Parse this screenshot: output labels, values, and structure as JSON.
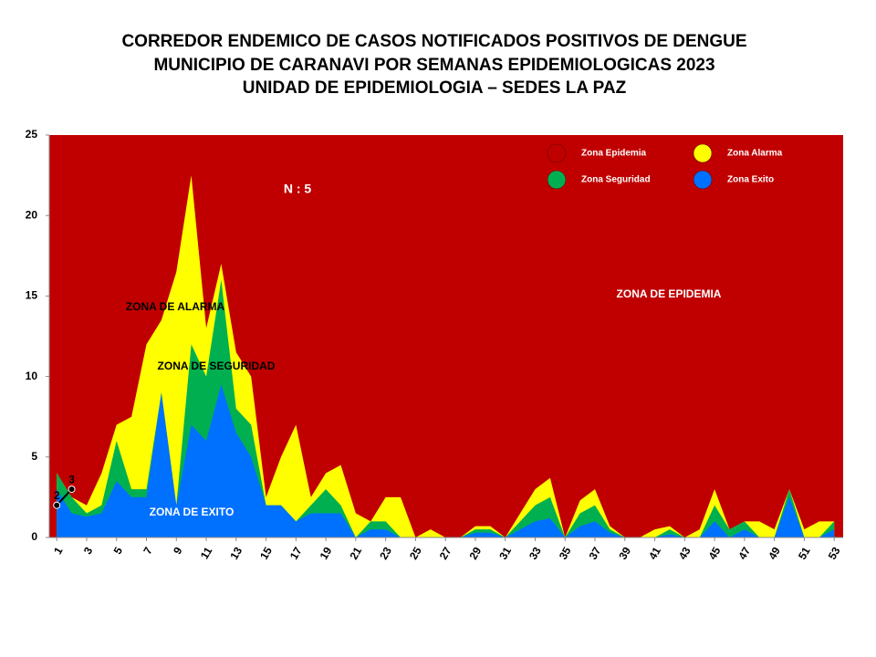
{
  "chart_data": {
    "type": "area",
    "title": [
      "CORREDOR ENDEMICO DE CASOS NOTIFICADOS POSITIVOS DE DENGUE",
      "MUNICIPIO DE CARANAVI POR SEMANAS EPIDEMIOLOGICAS 2023",
      "UNIDAD DE EPIDEMIOLOGIA – SEDES LA PAZ"
    ],
    "annotations": [
      "N : 5",
      "ZONA DE ALARMA",
      "ZONA DE  SEGURIDAD",
      "ZONA DE  EXITO",
      "ZONA DE EPIDEMIA"
    ],
    "x": [
      1,
      2,
      3,
      4,
      5,
      6,
      7,
      8,
      9,
      10,
      11,
      12,
      13,
      14,
      15,
      16,
      17,
      18,
      19,
      20,
      21,
      22,
      23,
      24,
      25,
      26,
      27,
      28,
      29,
      30,
      31,
      32,
      33,
      34,
      35,
      36,
      37,
      38,
      39,
      40,
      41,
      42,
      43,
      44,
      45,
      46,
      47,
      48,
      49,
      50,
      51,
      52,
      53
    ],
    "xlim": [
      0.5,
      53.6
    ],
    "xticks": [
      1,
      3,
      5,
      7,
      9,
      11,
      13,
      15,
      17,
      19,
      21,
      23,
      25,
      27,
      29,
      31,
      33,
      35,
      37,
      39,
      41,
      43,
      45,
      47,
      49,
      51,
      53
    ],
    "ylim": [
      0,
      25
    ],
    "yticks": [
      0,
      5,
      10,
      15,
      20,
      25
    ],
    "series": [
      {
        "name": "Zona Epidemia",
        "color": "#c00000"
      },
      {
        "name": "Zona Alarma",
        "color": "#ffff00",
        "values": [
          4,
          2.5,
          2,
          4,
          7,
          7.5,
          12,
          13.5,
          16.5,
          22.5,
          13,
          17,
          11.5,
          10,
          2.5,
          5,
          7,
          2.5,
          4,
          4.5,
          1.5,
          1,
          2.5,
          2.5,
          0,
          0.5,
          0,
          0,
          0.7,
          0.7,
          0,
          1.5,
          3,
          3.7,
          0,
          2.3,
          3,
          0.7,
          0,
          0,
          0.5,
          0.7,
          0,
          0.5,
          3,
          0.5,
          1,
          1,
          0.5,
          3,
          0.5,
          1,
          1
        ]
      },
      {
        "name": "Zona Seguridad",
        "color": "#00b050",
        "values": [
          4,
          2.5,
          1.5,
          2,
          6,
          3,
          3,
          9,
          2,
          12,
          10,
          16,
          8,
          7,
          2,
          2,
          1,
          2,
          3,
          2,
          0,
          1,
          1,
          0,
          0,
          0,
          0,
          0,
          0.5,
          0.5,
          0,
          1,
          2,
          2.5,
          0,
          1.5,
          2,
          0.5,
          0,
          0,
          0,
          0.5,
          0,
          0,
          2,
          0.5,
          1,
          0,
          0,
          3,
          0,
          0,
          1
        ]
      },
      {
        "name": "Zona Exito",
        "color": "#0070ff",
        "values": [
          3,
          1.5,
          1.3,
          1.5,
          3.5,
          2.5,
          2.5,
          9,
          2,
          7,
          6,
          9.5,
          6.5,
          5,
          2,
          2,
          1,
          1.5,
          1.5,
          1.5,
          0,
          0.5,
          0.5,
          0,
          0,
          0,
          0,
          0,
          0.3,
          0.3,
          0,
          0.5,
          1,
          1.2,
          0,
          0.7,
          1,
          0.3,
          0,
          0,
          0,
          0.2,
          0,
          0,
          1,
          0,
          0.5,
          0,
          0,
          2.5,
          0,
          0,
          0.5
        ]
      }
    ],
    "cases": {
      "color": "#000000",
      "x": [
        1,
        2
      ],
      "values": [
        2,
        3
      ]
    }
  }
}
